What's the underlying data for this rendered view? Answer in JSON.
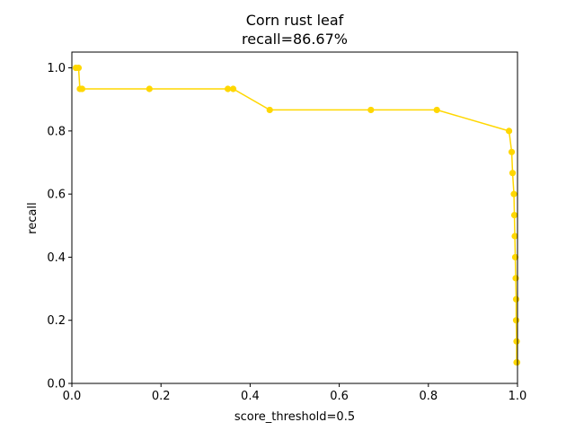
{
  "chart_data": {
    "type": "line",
    "title": "Corn rust leaf",
    "subtitle": "recall=86.67%",
    "xlabel": "score_threshold=0.5",
    "ylabel": "recall",
    "xlim": [
      0,
      1
    ],
    "ylim": [
      0,
      1.05
    ],
    "x_ticks": [
      "0.0",
      "0.2",
      "0.4",
      "0.6",
      "0.8",
      "1.0"
    ],
    "y_ticks": [
      "0.0",
      "0.2",
      "0.4",
      "0.6",
      "0.8",
      "1.0"
    ],
    "grid": false,
    "legend": "none",
    "series": [
      {
        "color": "#ffd700",
        "marker": "circle",
        "x": [
          0.009,
          0.015,
          0.018,
          0.023,
          0.174,
          0.35,
          0.362,
          0.444,
          0.671,
          0.819,
          0.981,
          0.987,
          0.989,
          0.992,
          0.993,
          0.994,
          0.995,
          0.996,
          0.997,
          0.997,
          0.998,
          0.998,
          0.999
        ],
        "y": [
          1.0,
          1.0,
          0.9333,
          0.9333,
          0.9333,
          0.9333,
          0.9333,
          0.8667,
          0.8667,
          0.8667,
          0.8,
          0.7333,
          0.6667,
          0.6,
          0.5333,
          0.4667,
          0.4,
          0.3333,
          0.2667,
          0.2,
          0.1333,
          0.0667,
          0.0667
        ]
      }
    ]
  }
}
